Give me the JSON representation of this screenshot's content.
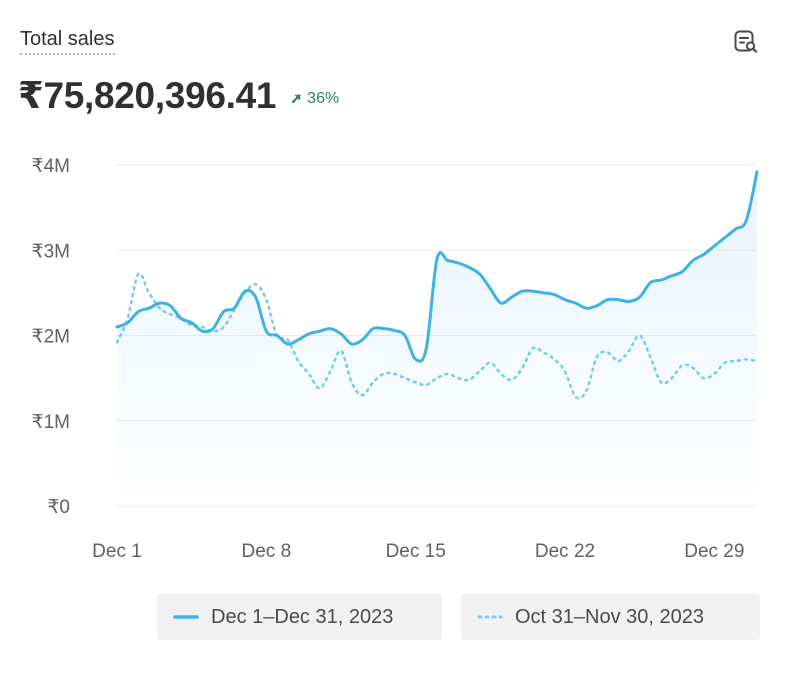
{
  "card": {
    "title": "Total sales",
    "value": "₹75,820,396.41",
    "change": "36%",
    "explore_icon": "explore-report-icon",
    "trend_icon": "arrow-up-right-icon"
  },
  "legend": [
    {
      "label": "Dec 1–Dec 31, 2023",
      "style": "solid"
    },
    {
      "label": "Oct 31–Nov 30, 2023",
      "style": "dotted"
    }
  ],
  "colors": {
    "primary": "#3fb1e3",
    "comparison": "#7fcbed",
    "positive": "#29845a"
  },
  "chart_data": {
    "type": "line",
    "title": "Total sales",
    "y_unit": "₹ (millions)",
    "ylim": [
      0,
      4
    ],
    "yticks": [
      {
        "value": 0,
        "label": "₹0"
      },
      {
        "value": 1,
        "label": "₹1M"
      },
      {
        "value": 2,
        "label": "₹2M"
      },
      {
        "value": 3,
        "label": "₹3M"
      },
      {
        "value": 4,
        "label": "₹4M"
      }
    ],
    "xlim": [
      1,
      31
    ],
    "xticks": [
      {
        "value": 1,
        "label": "Dec 1"
      },
      {
        "value": 8,
        "label": "Dec 8"
      },
      {
        "value": 15,
        "label": "Dec 15"
      },
      {
        "value": 22,
        "label": "Dec 22"
      },
      {
        "value": 29,
        "label": "Dec 29"
      }
    ],
    "grid": true,
    "legend_position": "bottom",
    "series": [
      {
        "name": "Dec 1–Dec 31, 2023",
        "style": "solid",
        "x": [
          1,
          1.5,
          2,
          2.5,
          3,
          3.5,
          4,
          4.5,
          5,
          5.5,
          6,
          6.5,
          7,
          7.5,
          8,
          8.5,
          9,
          9.5,
          10,
          10.5,
          11,
          11.5,
          12,
          12.5,
          13,
          13.5,
          14,
          14.5,
          15,
          15.5,
          16,
          16.5,
          17,
          17.5,
          18,
          18.5,
          19,
          19.5,
          20,
          20.5,
          21,
          21.5,
          22,
          22.5,
          23,
          23.5,
          24,
          24.5,
          25,
          25.5,
          26,
          26.5,
          27,
          27.5,
          28,
          28.5,
          29,
          29.5,
          30,
          30.5,
          31
        ],
        "values": [
          2.1,
          2.15,
          2.28,
          2.32,
          2.38,
          2.35,
          2.2,
          2.15,
          2.05,
          2.08,
          2.28,
          2.32,
          2.52,
          2.45,
          2.05,
          2.0,
          1.9,
          1.95,
          2.02,
          2.05,
          2.08,
          2.02,
          1.9,
          1.95,
          2.08,
          2.08,
          2.06,
          2.0,
          1.72,
          1.85,
          2.9,
          2.88,
          2.85,
          2.8,
          2.72,
          2.55,
          2.38,
          2.45,
          2.52,
          2.52,
          2.5,
          2.48,
          2.42,
          2.38,
          2.32,
          2.35,
          2.42,
          2.42,
          2.4,
          2.45,
          2.62,
          2.65,
          2.7,
          2.75,
          2.88,
          2.95,
          3.05,
          3.15,
          3.25,
          3.35,
          3.92
        ]
      },
      {
        "name": "Oct 31–Nov 30, 2023",
        "style": "dotted",
        "x": [
          1,
          1.5,
          2,
          2.5,
          3,
          3.5,
          4,
          4.5,
          5,
          5.5,
          6,
          6.5,
          7,
          7.5,
          8,
          8.5,
          9,
          9.5,
          10,
          10.5,
          11,
          11.5,
          12,
          12.5,
          13,
          13.5,
          14,
          14.5,
          15,
          15.5,
          16,
          16.5,
          17,
          17.5,
          18,
          18.5,
          19,
          19.5,
          20,
          20.5,
          21,
          21.5,
          22,
          22.5,
          23,
          23.5,
          24,
          24.5,
          25,
          25.5,
          26,
          26.5,
          27,
          27.5,
          28,
          28.5,
          29,
          29.5,
          30,
          30.5,
          31
        ],
        "values": [
          1.92,
          2.2,
          2.72,
          2.5,
          2.32,
          2.25,
          2.2,
          2.12,
          2.1,
          2.05,
          2.1,
          2.3,
          2.5,
          2.6,
          2.42,
          2.0,
          1.95,
          1.7,
          1.55,
          1.38,
          1.58,
          1.82,
          1.45,
          1.3,
          1.45,
          1.55,
          1.55,
          1.5,
          1.45,
          1.42,
          1.5,
          1.55,
          1.5,
          1.48,
          1.58,
          1.68,
          1.55,
          1.48,
          1.62,
          1.85,
          1.8,
          1.72,
          1.58,
          1.28,
          1.35,
          1.75,
          1.8,
          1.7,
          1.82,
          2.0,
          1.75,
          1.45,
          1.5,
          1.65,
          1.62,
          1.5,
          1.55,
          1.68,
          1.7,
          1.72,
          1.7
        ]
      }
    ]
  }
}
